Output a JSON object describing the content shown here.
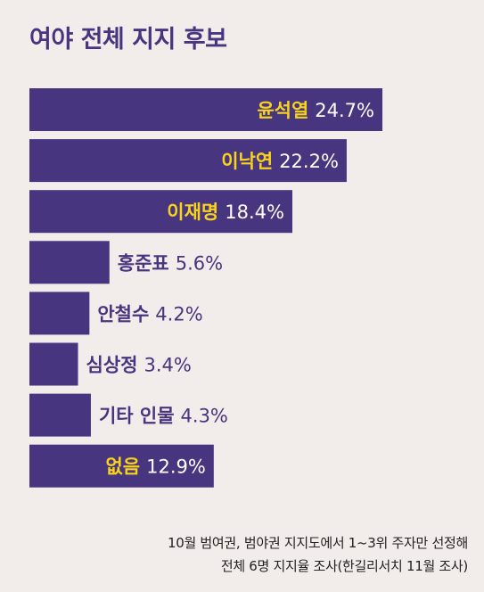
{
  "title": "여야 전체 지지 후보",
  "chart_data": {
    "type": "bar",
    "orientation": "horizontal",
    "title": "여야 전체 지지 후보",
    "categories": [
      "윤석열",
      "이낙연",
      "이재명",
      "홍준표",
      "안철수",
      "심상정",
      "기타 인물",
      "없음"
    ],
    "values": [
      24.7,
      22.2,
      18.4,
      5.6,
      4.2,
      3.4,
      4.3,
      12.9
    ],
    "value_labels": [
      "24.7%",
      "22.2%",
      "18.4%",
      "5.6%",
      "4.2%",
      "3.4%",
      "4.3%",
      "12.9%"
    ],
    "label_position": [
      "inside",
      "inside",
      "inside",
      "outside",
      "outside",
      "outside",
      "outside",
      "inside"
    ],
    "unit": "%",
    "xlabel": "",
    "ylabel": "",
    "bar_color": "#47357f",
    "inside_label_color": "#f7d31c",
    "inside_value_color": "#ffffff",
    "outside_label_color": "#47357f",
    "background": "#f2ecea"
  },
  "footnote": {
    "line1": "10월 범여권, 범야권 지지도에서 1~3위 주자만 선정해",
    "line2": "전체 6명 지지율 조사(한길리서치 11월 조사)"
  }
}
